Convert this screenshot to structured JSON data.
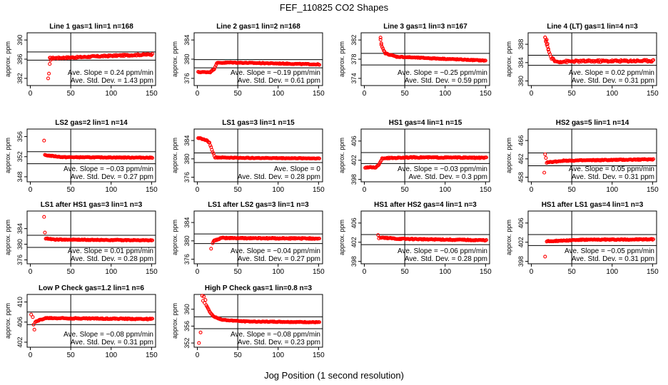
{
  "figure": {
    "title": "FEF_110825  CO2 Shapes",
    "xlabel": "Jog Position (1 second resolution)",
    "panel_ylabel": "approx. ppm"
  },
  "chart_data": [
    {
      "type": "scatter",
      "title": "Line 1 gas=1 lin=1 n=168",
      "ylim": [
        380.5,
        391.5
      ],
      "yticks": [
        382,
        386,
        390
      ],
      "xticks": [
        0,
        50,
        100,
        150
      ],
      "hlines": [
        385.8,
        387.5
      ],
      "vline": 50,
      "slope_text": "Ave. Slope = 0.24  ppm/min",
      "sd_text": "Ave. Std. Dev. = 1.43  ppm",
      "shape": {
        "start": 24,
        "end": 151,
        "base": [
          [
            24,
            386.2
          ],
          [
            60,
            386.4
          ],
          [
            100,
            386.7
          ],
          [
            151,
            387.0
          ]
        ],
        "noise": 0.15,
        "outliers": [
          [
            22,
            382
          ],
          [
            23,
            383
          ],
          [
            24,
            385
          ],
          [
            25,
            385.8
          ]
        ]
      }
    },
    {
      "type": "scatter",
      "title": "Line 2 gas=1 lin=2 n=168",
      "ylim": [
        374.5,
        385.5
      ],
      "yticks": [
        376,
        380,
        384
      ],
      "xticks": [
        0,
        50,
        100,
        150
      ],
      "hlines": [
        378.2,
        379.9
      ],
      "vline": 50,
      "slope_text": "Ave. Slope = −0.19  ppm/min",
      "sd_text": "Ave. Std. Dev. = 0.61  ppm",
      "shape": {
        "start": 1,
        "end": 151,
        "base": [
          [
            1,
            377.3
          ],
          [
            16,
            377.3
          ],
          [
            21,
            378
          ],
          [
            24,
            379.2
          ],
          [
            40,
            379.3
          ],
          [
            100,
            379.1
          ],
          [
            151,
            378.9
          ]
        ],
        "noise": 0.08,
        "outliers": []
      }
    },
    {
      "type": "scatter",
      "title": "Line 3 gas=1 lin=3 n=167",
      "ylim": [
        372.5,
        383.5
      ],
      "yticks": [
        374,
        378,
        382
      ],
      "xticks": [
        0,
        50,
        100,
        150
      ],
      "hlines": [
        376.8,
        379.2
      ],
      "vline": 50,
      "slope_text": "Ave. Slope = −0.25  ppm/min",
      "sd_text": "Ave. Std. Dev. = 0.59  ppm",
      "shape": {
        "start": 20,
        "end": 150,
        "base": [
          [
            20,
            382
          ],
          [
            22,
            380.5
          ],
          [
            26,
            379.2
          ],
          [
            40,
            378.5
          ],
          [
            80,
            378.2
          ],
          [
            150,
            377.7
          ]
        ],
        "noise": 0.08,
        "outliers": [
          [
            20,
            382.5
          ],
          [
            21,
            381
          ]
        ]
      }
    },
    {
      "type": "scatter",
      "title": "Line 4 (LT) gas=1 lin=4 n=3",
      "ylim": [
        379,
        390.5
      ],
      "yticks": [
        380,
        384,
        388
      ],
      "xticks": [
        0,
        50,
        100,
        150
      ],
      "hlines": [
        383.4,
        385.6
      ],
      "vline": 50,
      "slope_text": "Ave. Slope = 0.02  ppm/min",
      "sd_text": "Ave. Std. Dev. = 0.31  ppm",
      "shape": {
        "start": 17,
        "end": 151,
        "base": [
          [
            17,
            389.3
          ],
          [
            20,
            387.5
          ],
          [
            24,
            385.2
          ],
          [
            30,
            384.2
          ],
          [
            60,
            384.3
          ],
          [
            151,
            384.4
          ]
        ],
        "noise": 0.22,
        "outliers": [
          [
            17,
            389.5
          ],
          [
            18,
            388.8
          ],
          [
            19,
            389
          ],
          [
            20,
            388.1
          ],
          [
            21,
            386.8
          ]
        ]
      }
    },
    {
      "type": "scatter",
      "title": "LS2 gas=2 lin=1 n=14",
      "ylim": [
        347,
        357.5
      ],
      "yticks": [
        348,
        352,
        356
      ],
      "xticks": [
        0,
        50,
        100,
        150
      ],
      "hlines": [
        350.6,
        353
      ],
      "vline": 50,
      "slope_text": "Ave. Slope = −0.03  ppm/min",
      "sd_text": "Ave. Std. Dev. = 0.27  ppm",
      "shape": {
        "start": 18,
        "end": 151,
        "base": [
          [
            18,
            352.3
          ],
          [
            40,
            351.9
          ],
          [
            151,
            351.8
          ]
        ],
        "noise": 0.07,
        "outliers": [
          [
            17,
            355.2
          ]
        ]
      }
    },
    {
      "type": "scatter",
      "title": "LS1 gas=3 lin=1 n=15",
      "ylim": [
        375,
        386.5
      ],
      "yticks": [
        376,
        380,
        384
      ],
      "xticks": [
        0,
        50,
        100,
        150
      ],
      "hlines": [
        379.2,
        381.3
      ],
      "vline": 50,
      "slope_text": "Ave. Slope = 0",
      "sd_text": "Ave. Std. Dev. = 0.28  ppm",
      "shape": {
        "start": 1,
        "end": 151,
        "base": [
          [
            1,
            384.6
          ],
          [
            12,
            384
          ],
          [
            15,
            383.5
          ],
          [
            19,
            381.5
          ],
          [
            22,
            380.3
          ],
          [
            60,
            380.2
          ],
          [
            151,
            380.1
          ]
        ],
        "noise": 0.07,
        "outliers": []
      }
    },
    {
      "type": "scatter",
      "title": "HS1 gas=4 lin=1 n=15",
      "ylim": [
        397.5,
        408.5
      ],
      "yticks": [
        398,
        402,
        406
      ],
      "xticks": [
        0,
        50,
        100,
        150
      ],
      "hlines": [
        401.3,
        403.6
      ],
      "vline": 50,
      "slope_text": "Ave. Slope = −0.03  ppm/min",
      "sd_text": "Ave. Std. Dev. = 0.3  ppm",
      "shape": {
        "start": 1,
        "end": 151,
        "base": [
          [
            1,
            400.5
          ],
          [
            14,
            400.5
          ],
          [
            18,
            401
          ],
          [
            22,
            402.4
          ],
          [
            60,
            402.6
          ],
          [
            151,
            402.5
          ]
        ],
        "noise": 0.1,
        "outliers": []
      }
    },
    {
      "type": "scatter",
      "title": "HS2 gas=5 lin=1 n=14",
      "ylim": [
        457,
        468.5
      ],
      "yticks": [
        458,
        462,
        466
      ],
      "xticks": [
        0,
        50,
        100,
        150
      ],
      "hlines": [
        460.5,
        463.3
      ],
      "vline": 50,
      "slope_text": "Ave. Slope = 0.05  ppm/min",
      "sd_text": "Ave. Std. Dev. = 0.31  ppm",
      "shape": {
        "start": 19,
        "end": 151,
        "base": [
          [
            19,
            461.2
          ],
          [
            40,
            461.6
          ],
          [
            151,
            461.9
          ]
        ],
        "noise": 0.1,
        "outliers": [
          [
            16,
            459
          ],
          [
            17,
            463
          ],
          [
            18,
            462.2
          ]
        ]
      }
    },
    {
      "type": "scatter",
      "title": "LS1 after HS1 gas=3 lin=1 n=3",
      "ylim": [
        375,
        388.5
      ],
      "yticks": [
        376,
        380,
        384
      ],
      "xticks": [
        0,
        50,
        100,
        150
      ],
      "hlines": [
        379.2,
        382.3
      ],
      "vline": 50,
      "slope_text": "Ave. Slope = 0.01  ppm/min",
      "sd_text": "Ave. Std. Dev. = 0.28  ppm",
      "shape": {
        "start": 19,
        "end": 151,
        "base": [
          [
            19,
            381.5
          ],
          [
            30,
            381.2
          ],
          [
            151,
            381
          ]
        ],
        "noise": 0.1,
        "outliers": [
          [
            17,
            387
          ],
          [
            18,
            383
          ]
        ]
      }
    },
    {
      "type": "scatter",
      "title": "LS1 after LS2 gas=3 lin=1 n=3",
      "ylim": [
        375,
        386.5
      ],
      "yticks": [
        376,
        380,
        384
      ],
      "xticks": [
        0,
        50,
        100,
        150
      ],
      "hlines": [
        379.4,
        381.5
      ],
      "vline": 50,
      "slope_text": "Ave. Slope = −0.04  ppm/min",
      "sd_text": "Ave. Std. Dev. = 0.27  ppm",
      "shape": {
        "start": 20,
        "end": 151,
        "base": [
          [
            20,
            380
          ],
          [
            30,
            380.6
          ],
          [
            151,
            380.5
          ]
        ],
        "noise": 0.12,
        "outliers": [
          [
            17,
            378.3
          ],
          [
            19,
            379.5
          ]
        ]
      }
    },
    {
      "type": "scatter",
      "title": "HS1 after HS2 gas=4 lin=1 n=3",
      "ylim": [
        397.5,
        408.5
      ],
      "yticks": [
        398,
        402,
        406
      ],
      "xticks": [
        0,
        50,
        100,
        150
      ],
      "hlines": [
        401.5,
        403.6
      ],
      "vline": 50,
      "slope_text": "Ave. Slope = −0.06  ppm/min",
      "sd_text": "Ave. Std. Dev. = 0.28  ppm",
      "shape": {
        "start": 20,
        "end": 151,
        "base": [
          [
            20,
            403
          ],
          [
            40,
            402.7
          ],
          [
            151,
            402.4
          ]
        ],
        "noise": 0.1,
        "outliers": [
          [
            17,
            403.5
          ],
          [
            18,
            402.8
          ]
        ]
      }
    },
    {
      "type": "scatter",
      "title": "HS1 after LS1 gas=4 lin=1 n=3",
      "ylim": [
        397.5,
        408.5
      ],
      "yticks": [
        398,
        402,
        406
      ],
      "xticks": [
        0,
        50,
        100,
        150
      ],
      "hlines": [
        401.3,
        403.6
      ],
      "vline": 50,
      "slope_text": "Ave. Slope = −0.05  ppm/min",
      "sd_text": "Ave. Std. Dev. = 0.31  ppm",
      "shape": {
        "start": 19,
        "end": 151,
        "base": [
          [
            19,
            402.2
          ],
          [
            60,
            402.5
          ],
          [
            151,
            402.6
          ]
        ],
        "noise": 0.1,
        "outliers": [
          [
            17,
            399
          ]
        ]
      }
    },
    {
      "type": "scatter",
      "title": "Low P Check gas=1.2 lin=1 n=6",
      "ylim": [
        401,
        411.5
      ],
      "yticks": [
        402,
        406,
        410
      ],
      "xticks": [
        0,
        50,
        100,
        150
      ],
      "hlines": [
        405.5,
        408
      ],
      "vline": 50,
      "slope_text": "Ave. Slope = −0.08  ppm/min",
      "sd_text": "Ave. Std. Dev. = 0.31  ppm",
      "shape": {
        "start": 7,
        "end": 151,
        "base": [
          [
            7,
            406.2
          ],
          [
            20,
            406.8
          ],
          [
            151,
            406.6
          ]
        ],
        "noise": 0.1,
        "outliers": [
          [
            1,
            407.5
          ],
          [
            3,
            407
          ],
          [
            4,
            405.5
          ],
          [
            5,
            404.5
          ],
          [
            6,
            406
          ]
        ]
      }
    },
    {
      "type": "scatter",
      "title": "High P Check gas=1 lin=0.8 n=3",
      "ylim": [
        351,
        363.5
      ],
      "yticks": [
        352,
        356,
        360
      ],
      "xticks": [
        0,
        50,
        100,
        150
      ],
      "hlines": [
        355.4,
        358.2
      ],
      "vline": 50,
      "slope_text": "Ave. Slope = −0.08  ppm/min",
      "sd_text": "Ave. Std. Dev. = 0.23  ppm",
      "shape": {
        "start": 11,
        "end": 151,
        "base": [
          [
            11,
            361
          ],
          [
            15,
            359.5
          ],
          [
            20,
            358.3
          ],
          [
            30,
            357.5
          ],
          [
            60,
            357.1
          ],
          [
            151,
            356.9
          ]
        ],
        "noise": 0.08,
        "outliers": [
          [
            2,
            352
          ],
          [
            4,
            354.5
          ],
          [
            6,
            363.2
          ],
          [
            7,
            362
          ],
          [
            8,
            363
          ],
          [
            9,
            361.5
          ],
          [
            10,
            362.2
          ]
        ]
      }
    }
  ]
}
